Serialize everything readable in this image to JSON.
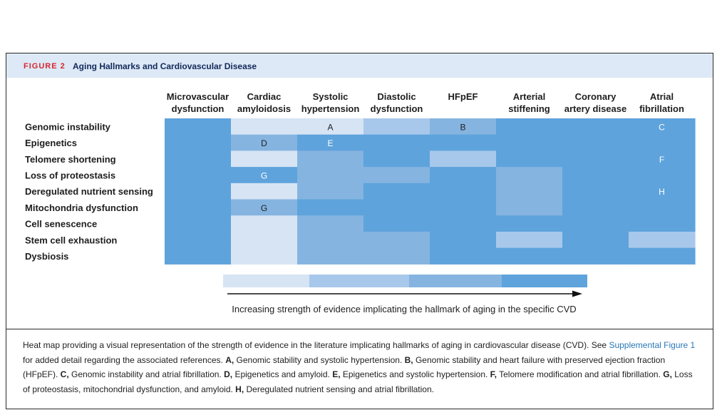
{
  "figure": {
    "label": "FIGURE 2",
    "title": "Aging Hallmarks and Cardiovascular Disease"
  },
  "chart_data": {
    "type": "heatmap",
    "columns": [
      [
        "Microvascular",
        "dysfunction"
      ],
      [
        "Cardiac",
        "amyloidosis"
      ],
      [
        "Systolic",
        "hypertension"
      ],
      [
        "Diastolic",
        "dysfunction"
      ],
      [
        "HFpEF"
      ],
      [
        "Arterial",
        "stiffening"
      ],
      [
        "Coronary",
        "artery disease"
      ],
      [
        "Atrial",
        "fibrillation"
      ]
    ],
    "rows": [
      "Genomic instability",
      "Epigenetics",
      "Telomere shortening",
      "Loss of proteostasis",
      "Deregulated nutrient sensing",
      "Mitochondria dysfunction",
      "Cell senescence",
      "Stem cell exhaustion",
      "Dysbiosis"
    ],
    "levels": [
      [
        4,
        1,
        1,
        2,
        3,
        4,
        4,
        4
      ],
      [
        4,
        3,
        4,
        4,
        4,
        4,
        4,
        4
      ],
      [
        4,
        1,
        3,
        4,
        2,
        4,
        4,
        4
      ],
      [
        4,
        4,
        3,
        3,
        4,
        3,
        4,
        4
      ],
      [
        4,
        1,
        3,
        4,
        4,
        3,
        4,
        4
      ],
      [
        4,
        3,
        4,
        4,
        4,
        3,
        4,
        4
      ],
      [
        4,
        1,
        3,
        4,
        4,
        4,
        4,
        4
      ],
      [
        4,
        1,
        3,
        3,
        4,
        2,
        4,
        2
      ],
      [
        4,
        1,
        3,
        3,
        4,
        4,
        4,
        4
      ]
    ],
    "annotations": [
      {
        "row": 0,
        "col": 2,
        "text": "A"
      },
      {
        "row": 0,
        "col": 4,
        "text": "B"
      },
      {
        "row": 0,
        "col": 7,
        "text": "C"
      },
      {
        "row": 1,
        "col": 1,
        "text": "D"
      },
      {
        "row": 1,
        "col": 2,
        "text": "E"
      },
      {
        "row": 2,
        "col": 7,
        "text": "F"
      },
      {
        "row": 3,
        "col": 1,
        "text": "G"
      },
      {
        "row": 4,
        "col": 7,
        "text": "H"
      },
      {
        "row": 5,
        "col": 1,
        "text": "G"
      }
    ],
    "scale_levels": [
      1,
      2,
      3,
      4
    ],
    "colors": [
      "#d6e4f4",
      "#a8c8eb",
      "#85b4e0",
      "#5ea3dc"
    ],
    "legend_label": "Increasing strength of evidence implicating the hallmark of aging in the specific CVD"
  },
  "caption": {
    "intro": "Heat map providing a visual representation of the strength of evidence in the literature implicating hallmarks of aging in cardiovascular disease (CVD). See ",
    "link": "Supplemental Figure 1",
    "after_link": " for added detail regarding the associated references. ",
    "items": [
      {
        "key": "A,",
        "text": " Genomic stability and systolic hypertension. "
      },
      {
        "key": "B,",
        "text": " Genomic stability and heart failure with preserved ejection fraction (HFpEF). "
      },
      {
        "key": "C,",
        "text": " Genomic instability and atrial fibrillation. "
      },
      {
        "key": "D,",
        "text": " Epigenetics and amyloid. "
      },
      {
        "key": "E,",
        "text": " Epigenetics and systolic hypertension. "
      },
      {
        "key": "F,",
        "text": " Telomere modification and atrial fibrillation. "
      },
      {
        "key": "G,",
        "text": " Loss of proteostasis, mitochondrial dysfunction, and amyloid. "
      },
      {
        "key": "H,",
        "text": " Deregulated nutrient sensing and atrial fibrillation."
      }
    ]
  }
}
